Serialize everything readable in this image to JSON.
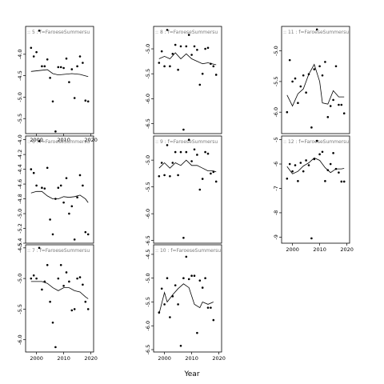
{
  "chart_data": {
    "type": "scatter",
    "xlabel": "Year",
    "ylabel": "",
    "x_ticks": [
      2000,
      2010,
      2020
    ],
    "xlim": [
      1996,
      2021
    ],
    "grid": false,
    "panels": [
      {
        "strip": ":: 5 : f=FaroeseSummersu",
        "ylim": [
          -5.85,
          -3.35
        ],
        "y_ticks": [
          -4.0,
          -4.5,
          -5.0,
          -5.5
        ],
        "y_tick_labels": [
          "-4.0",
          "-4.5",
          "-5.0",
          "-5.5"
        ],
        "show_x_ticks": true,
        "points": [
          [
            1998,
            -3.85
          ],
          [
            1999,
            -4.05
          ],
          [
            2000,
            -3.95
          ],
          [
            2001,
            -3.45
          ],
          [
            2002,
            -4.28
          ],
          [
            2003,
            -4.28
          ],
          [
            2004,
            -4.12
          ],
          [
            2005,
            -4.55
          ],
          [
            2006,
            -5.1
          ],
          [
            2007,
            -5.8
          ],
          [
            2008,
            -4.3
          ],
          [
            2009,
            -4.3
          ],
          [
            2010,
            -4.32
          ],
          [
            2011,
            -4.1
          ],
          [
            2012,
            -4.65
          ],
          [
            2013,
            -4.35
          ],
          [
            2014,
            -5.02
          ],
          [
            2015,
            -4.28
          ],
          [
            2016,
            -4.05
          ],
          [
            2017,
            -4.2
          ],
          [
            2018,
            -5.08
          ],
          [
            2019,
            -5.1
          ]
        ],
        "smooth": [
          [
            1998,
            -4.4
          ],
          [
            2001,
            -4.38
          ],
          [
            2004,
            -4.36
          ],
          [
            2006,
            -4.45
          ],
          [
            2008,
            -4.48
          ],
          [
            2010,
            -4.47
          ],
          [
            2013,
            -4.45
          ],
          [
            2016,
            -4.47
          ],
          [
            2019,
            -4.52
          ]
        ]
      },
      {
        "strip": ":: 8 : f=FaroeseSummersu",
        "ylim": [
          -6.7,
          -4.55
        ],
        "y_ticks": [
          -5.0,
          -5.5,
          -6.0,
          -6.5
        ],
        "y_tick_labels": [
          "-5.0",
          "-5.5",
          "-6.0",
          "-6.5"
        ],
        "show_x_ticks": false,
        "points": [
          [
            1998,
            -5.28
          ],
          [
            1999,
            -5.05
          ],
          [
            2000,
            -5.35
          ],
          [
            2001,
            -4.62
          ],
          [
            2002,
            -5.35
          ],
          [
            2003,
            -5.1
          ],
          [
            2004,
            -4.92
          ],
          [
            2005,
            -5.42
          ],
          [
            2006,
            -4.95
          ],
          [
            2007,
            -6.62
          ],
          [
            2008,
            -4.95
          ],
          [
            2009,
            -4.72
          ],
          [
            2010,
            -5.12
          ],
          [
            2011,
            -4.95
          ],
          [
            2012,
            -5.02
          ],
          [
            2013,
            -5.72
          ],
          [
            2014,
            -5.5
          ],
          [
            2015,
            -5.0
          ],
          [
            2016,
            -4.98
          ],
          [
            2017,
            -5.3
          ],
          [
            2018,
            -5.35
          ],
          [
            2019,
            -5.52
          ]
        ],
        "smooth": [
          [
            1998,
            -5.2
          ],
          [
            2000,
            -5.15
          ],
          [
            2002,
            -5.2
          ],
          [
            2004,
            -5.08
          ],
          [
            2006,
            -5.2
          ],
          [
            2008,
            -5.1
          ],
          [
            2010,
            -5.2
          ],
          [
            2012,
            -5.25
          ],
          [
            2014,
            -5.3
          ],
          [
            2016,
            -5.28
          ],
          [
            2019,
            -5.32
          ]
        ]
      },
      {
        "strip": ":: 11 : f=FaroeseSummersu",
        "ylim": [
          -6.35,
          -4.6
        ],
        "y_ticks": [
          -5.0,
          -5.5,
          -6.0
        ],
        "y_tick_labels": [
          "-5.0",
          "-5.5",
          "-6.0"
        ],
        "show_x_ticks": false,
        "points": [
          [
            1998,
            -6.0
          ],
          [
            1999,
            -5.15
          ],
          [
            2000,
            -5.5
          ],
          [
            2001,
            -5.45
          ],
          [
            2002,
            -5.85
          ],
          [
            2003,
            -5.58
          ],
          [
            2004,
            -5.4
          ],
          [
            2005,
            -5.68
          ],
          [
            2006,
            -5.38
          ],
          [
            2007,
            -6.25
          ],
          [
            2008,
            -5.3
          ],
          [
            2009,
            -4.65
          ],
          [
            2010,
            -5.25
          ],
          [
            2011,
            -5.4
          ],
          [
            2012,
            -5.18
          ],
          [
            2013,
            -6.08
          ],
          [
            2014,
            -5.9
          ],
          [
            2015,
            -5.8
          ],
          [
            2016,
            -5.25
          ],
          [
            2017,
            -5.88
          ],
          [
            2018,
            -5.88
          ],
          [
            2019,
            -6.02
          ]
        ],
        "smooth": [
          [
            1998,
            -5.72
          ],
          [
            2000,
            -5.9
          ],
          [
            2002,
            -5.7
          ],
          [
            2004,
            -5.62
          ],
          [
            2006,
            -5.38
          ],
          [
            2008,
            -5.22
          ],
          [
            2010,
            -5.5
          ],
          [
            2011,
            -5.85
          ],
          [
            2013,
            -5.87
          ],
          [
            2015,
            -5.65
          ],
          [
            2017,
            -5.75
          ],
          [
            2019,
            -5.75
          ]
        ]
      },
      {
        "strip": ":: 6 : f=FaroeseSummersu",
        "ylim": [
          -5.4,
          -3.95
        ],
        "y_ticks": [
          -4.0,
          -4.2,
          -4.4,
          -4.6,
          -4.8,
          -5.0,
          -5.2,
          -5.4
        ],
        "y_tick_labels": [
          "-4.0",
          "-4.2",
          "-4.4",
          "-4.6",
          "-4.8",
          "-5.0",
          "-5.2",
          "-5.4"
        ],
        "show_x_ticks": false,
        "points": [
          [
            1998,
            -4.4
          ],
          [
            1999,
            -4.45
          ],
          [
            2000,
            -4.62
          ],
          [
            2001,
            -4.02
          ],
          [
            2002,
            -4.65
          ],
          [
            2003,
            -4.66
          ],
          [
            2004,
            -4.38
          ],
          [
            2005,
            -5.08
          ],
          [
            2006,
            -5.28
          ],
          [
            2007,
            -4.8
          ],
          [
            2008,
            -4.65
          ],
          [
            2009,
            -4.62
          ],
          [
            2010,
            -4.85
          ],
          [
            2011,
            -4.52
          ],
          [
            2012,
            -5.0
          ],
          [
            2013,
            -4.9
          ],
          [
            2014,
            -5.35
          ],
          [
            2015,
            -4.78
          ],
          [
            2016,
            -4.48
          ],
          [
            2017,
            -4.62
          ],
          [
            2018,
            -5.25
          ],
          [
            2019,
            -5.28
          ]
        ],
        "smooth": [
          [
            1998,
            -4.72
          ],
          [
            2000,
            -4.7
          ],
          [
            2002,
            -4.7
          ],
          [
            2004,
            -4.76
          ],
          [
            2006,
            -4.8
          ],
          [
            2008,
            -4.8
          ],
          [
            2010,
            -4.77
          ],
          [
            2012,
            -4.78
          ],
          [
            2014,
            -4.77
          ],
          [
            2016,
            -4.75
          ],
          [
            2018,
            -4.8
          ],
          [
            2019,
            -4.85
          ]
        ]
      },
      {
        "strip": ":: 9 : f=FaroeseSummersu",
        "ylim": [
          -6.55,
          -4.55
        ],
        "y_ticks": [
          -5.0,
          -5.5,
          -6.0,
          -6.5
        ],
        "y_tick_labels": [
          "-5.0",
          "-5.5",
          "-6.0",
          "-6.5"
        ],
        "show_x_ticks": false,
        "points": [
          [
            1998,
            -5.3
          ],
          [
            1999,
            -5.05
          ],
          [
            2000,
            -5.28
          ],
          [
            2001,
            -4.72
          ],
          [
            2002,
            -5.3
          ],
          [
            2003,
            -5.05
          ],
          [
            2004,
            -4.85
          ],
          [
            2005,
            -5.28
          ],
          [
            2006,
            -4.85
          ],
          [
            2007,
            -6.45
          ],
          [
            2008,
            -4.85
          ],
          [
            2009,
            -4.62
          ],
          [
            2010,
            -5.02
          ],
          [
            2011,
            -4.8
          ],
          [
            2012,
            -4.9
          ],
          [
            2013,
            -5.55
          ],
          [
            2014,
            -5.35
          ],
          [
            2015,
            -4.85
          ],
          [
            2016,
            -4.88
          ],
          [
            2017,
            -5.25
          ],
          [
            2018,
            -5.22
          ],
          [
            2019,
            -5.4
          ]
        ],
        "smooth": [
          [
            1998,
            -5.15
          ],
          [
            2000,
            -5.05
          ],
          [
            2002,
            -5.15
          ],
          [
            2004,
            -5.05
          ],
          [
            2006,
            -5.1
          ],
          [
            2008,
            -5.0
          ],
          [
            2010,
            -5.1
          ],
          [
            2012,
            -5.1
          ],
          [
            2014,
            -5.15
          ],
          [
            2016,
            -5.2
          ],
          [
            2018,
            -5.2
          ],
          [
            2019,
            -5.22
          ]
        ]
      },
      {
        "strip": ":: 12 : f=FaroeseSummersu",
        "ylim": [
          -9.25,
          -4.85
        ],
        "y_ticks": [
          -5,
          -6,
          -7,
          -8,
          -9
        ],
        "y_tick_labels": [
          "-5",
          "-6",
          "-7",
          "-8",
          "-9"
        ],
        "show_x_ticks": true,
        "points": [
          [
            1998,
            -6.6
          ],
          [
            1999,
            -6.0
          ],
          [
            2000,
            -6.3
          ],
          [
            2001,
            -6.05
          ],
          [
            2002,
            -6.7
          ],
          [
            2003,
            -5.95
          ],
          [
            2004,
            -6.3
          ],
          [
            2005,
            -5.85
          ],
          [
            2006,
            -6.05
          ],
          [
            2007,
            -9.05
          ],
          [
            2008,
            -5.8
          ],
          [
            2009,
            -5.05
          ],
          [
            2010,
            -5.6
          ],
          [
            2011,
            -5.5
          ],
          [
            2012,
            -6.7
          ],
          [
            2013,
            -6.25
          ],
          [
            2014,
            -6.0
          ],
          [
            2015,
            -5.55
          ],
          [
            2016,
            -6.2
          ],
          [
            2017,
            -6.35
          ],
          [
            2018,
            -6.72
          ],
          [
            2019,
            -6.72
          ]
        ],
        "smooth": [
          [
            1998,
            -6.1
          ],
          [
            2000,
            -6.4
          ],
          [
            2002,
            -6.3
          ],
          [
            2004,
            -6.08
          ],
          [
            2006,
            -5.95
          ],
          [
            2008,
            -5.75
          ],
          [
            2010,
            -5.85
          ],
          [
            2012,
            -6.15
          ],
          [
            2014,
            -6.35
          ],
          [
            2016,
            -6.2
          ],
          [
            2018,
            -6.2
          ],
          [
            2019,
            -6.18
          ]
        ]
      },
      {
        "strip": ":: 7 : f=FaroeseSummersu",
        "ylim": [
          -6.2,
          -4.45
        ],
        "y_ticks": [
          -4.5,
          -5.0,
          -5.5,
          -6.0
        ],
        "y_tick_labels": [
          "-4.5",
          "-5.0",
          "-5.5",
          "-6.0"
        ],
        "show_x_ticks": true,
        "points": [
          [
            1998,
            -5.0
          ],
          [
            1999,
            -4.95
          ],
          [
            2000,
            -5.0
          ],
          [
            2001,
            -4.5
          ],
          [
            2002,
            -5.18
          ],
          [
            2003,
            -5.05
          ],
          [
            2004,
            -4.78
          ],
          [
            2005,
            -5.38
          ],
          [
            2006,
            -5.72
          ],
          [
            2007,
            -6.12
          ],
          [
            2008,
            -5.0
          ],
          [
            2009,
            -4.78
          ],
          [
            2010,
            -5.12
          ],
          [
            2011,
            -4.9
          ],
          [
            2012,
            -5.05
          ],
          [
            2013,
            -5.52
          ],
          [
            2014,
            -5.5
          ],
          [
            2015,
            -5.0
          ],
          [
            2016,
            -4.98
          ],
          [
            2017,
            -5.1
          ],
          [
            2018,
            -5.38
          ],
          [
            2019,
            -5.5
          ]
        ],
        "smooth": [
          [
            1998,
            -5.05
          ],
          [
            2000,
            -5.05
          ],
          [
            2002,
            -5.05
          ],
          [
            2004,
            -5.08
          ],
          [
            2006,
            -5.15
          ],
          [
            2008,
            -5.2
          ],
          [
            2010,
            -5.15
          ],
          [
            2012,
            -5.15
          ],
          [
            2014,
            -5.2
          ],
          [
            2016,
            -5.22
          ],
          [
            2018,
            -5.3
          ],
          [
            2019,
            -5.33
          ]
        ]
      },
      {
        "strip": ":: 10 : f=FaroeseSummersu",
        "ylim": [
          -6.55,
          -4.3
        ],
        "y_ticks": [
          -4.5,
          -5.0,
          -5.5,
          -6.0,
          -6.5
        ],
        "y_tick_labels": [
          "-4.5",
          "-5.0",
          "-5.5",
          "-6.0",
          "-6.5"
        ],
        "show_x_ticks": true,
        "points": [
          [
            1998,
            -5.72
          ],
          [
            1999,
            -5.22
          ],
          [
            2000,
            -5.55
          ],
          [
            2001,
            -5.0
          ],
          [
            2002,
            -5.82
          ],
          [
            2003,
            -5.38
          ],
          [
            2004,
            -5.15
          ],
          [
            2005,
            -5.55
          ],
          [
            2006,
            -6.42
          ],
          [
            2007,
            -5.0
          ],
          [
            2008,
            -4.55
          ],
          [
            2009,
            -5.02
          ],
          [
            2010,
            -4.95
          ],
          [
            2011,
            -4.95
          ],
          [
            2012,
            -6.15
          ],
          [
            2013,
            -5.05
          ],
          [
            2014,
            -5.2
          ],
          [
            2015,
            -5.0
          ],
          [
            2016,
            -5.62
          ],
          [
            2017,
            -5.62
          ],
          [
            2018,
            -5.88
          ]
        ],
        "smooth": [
          [
            1998,
            -5.75
          ],
          [
            2000,
            -5.3
          ],
          [
            2001,
            -5.5
          ],
          [
            2003,
            -5.35
          ],
          [
            2005,
            -5.22
          ],
          [
            2007,
            -5.12
          ],
          [
            2009,
            -5.2
          ],
          [
            2011,
            -5.55
          ],
          [
            2013,
            -5.62
          ],
          [
            2014,
            -5.5
          ],
          [
            2016,
            -5.55
          ],
          [
            2018,
            -5.5
          ]
        ]
      }
    ]
  }
}
